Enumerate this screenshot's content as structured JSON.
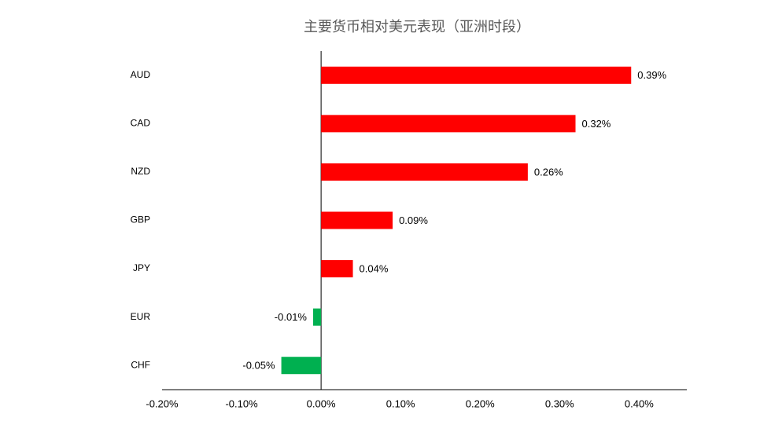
{
  "chart_data": {
    "type": "hbar",
    "title": "主要货币相对美元表现（亚洲时段）",
    "categories": [
      "AUD",
      "CAD",
      "NZD",
      "GBP",
      "JPY",
      "EUR",
      "CHF"
    ],
    "values": [
      0.39,
      0.32,
      0.26,
      0.09,
      0.04,
      -0.01,
      -0.05
    ],
    "value_labels": [
      "0.39%",
      "0.32%",
      "0.26%",
      "0.09%",
      "0.04%",
      "-0.01%",
      "-0.05%"
    ],
    "colors": [
      "#ff0000",
      "#ff0000",
      "#ff0000",
      "#ff0000",
      "#ff0000",
      "#00b050",
      "#00b050"
    ],
    "xlim": [
      -0.2,
      0.46
    ],
    "xticks": [
      {
        "value": -0.2,
        "label": "-0.20%"
      },
      {
        "value": -0.1,
        "label": "-0.10%"
      },
      {
        "value": 0,
        "label": "0.00%"
      },
      {
        "value": 0.1,
        "label": "0.10%"
      },
      {
        "value": 0.2,
        "label": "0.20%"
      },
      {
        "value": 0.3,
        "label": "0.30%"
      },
      {
        "value": 0.4,
        "label": "0.40%"
      }
    ],
    "grid": false
  }
}
